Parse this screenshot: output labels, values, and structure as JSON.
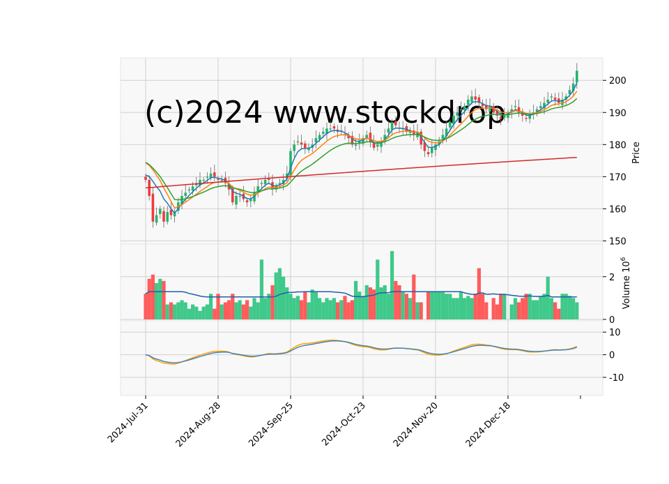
{
  "watermark": "(c)2024 www.stockdrop",
  "colors": {
    "panel_bg": "#f8f8f8",
    "grid": "#d0d0d0",
    "up": "#26b36e",
    "down": "#ef3c3c",
    "ma5": "#1f77b4",
    "ma10": "#ff7f0e",
    "ma20": "#2ca02c",
    "ma50": "#d62728",
    "volume_up": "#3fc98a",
    "volume_down": "#ff5c5c",
    "volume_ma": "#1f5fa8",
    "osc_fast": "#4682b4",
    "osc_slow": "#ffa500",
    "watermark": "#e4e4e4"
  },
  "chart_data": [
    {
      "type": "candlestick",
      "ylabel": "Price",
      "ylim": [
        149,
        207
      ],
      "yticks": [
        150,
        160,
        170,
        180,
        190,
        200
      ],
      "x_tick_labels": [
        "2024-Jul-31",
        "2024-Aug-28",
        "2024-Sep-25",
        "2024-Oct-23",
        "2024-Nov-20",
        "2024-Dec-18"
      ],
      "x_tick_index": [
        0,
        20,
        40,
        60,
        80,
        100
      ],
      "n": 120,
      "closes": [
        169,
        164,
        156,
        158,
        160,
        156,
        159,
        158,
        159,
        162,
        164,
        165,
        166,
        167,
        168,
        169,
        169,
        170,
        171,
        170,
        169,
        169,
        168,
        166,
        162,
        164,
        164,
        163,
        162,
        163,
        165,
        167,
        168,
        169,
        169,
        166,
        167,
        168,
        169,
        171,
        178,
        180,
        181,
        180,
        179,
        179,
        180,
        182,
        183,
        184,
        185,
        185,
        185,
        184,
        184,
        183,
        182,
        180,
        180,
        181,
        182,
        183,
        181,
        179,
        180,
        181,
        183,
        185,
        187,
        186,
        185,
        185,
        184,
        184,
        183,
        184,
        180,
        178,
        177,
        179,
        180,
        181,
        183,
        185,
        187,
        189,
        190,
        191,
        192,
        194,
        195,
        194,
        193,
        192,
        191,
        192,
        190,
        189,
        188,
        189,
        190,
        191,
        192,
        190,
        189,
        188,
        189,
        190,
        191,
        192,
        193,
        194,
        195,
        194,
        193,
        194,
        195,
        197,
        199,
        203
      ],
      "volume_unit": "Volume  10^6",
      "volume_ylim": [
        0,
        3.2
      ],
      "volume_yticks": [
        0,
        2
      ],
      "volumes": [
        1.2,
        1.9,
        2.1,
        1.7,
        1.9,
        1.8,
        0.7,
        0.8,
        0.7,
        0.8,
        0.9,
        0.8,
        0.5,
        0.7,
        0.6,
        0.4,
        0.6,
        0.7,
        1.2,
        0.5,
        1.2,
        0.7,
        0.8,
        0.9,
        1.2,
        0.8,
        0.9,
        0.7,
        0.9,
        0.6,
        1.0,
        0.8,
        2.8,
        1.0,
        1.2,
        1.6,
        2.2,
        2.4,
        2.0,
        1.5,
        1.2,
        1.0,
        1.1,
        0.9,
        1.3,
        0.8,
        1.4,
        1.3,
        1.0,
        0.8,
        1.0,
        0.9,
        1.0,
        0.8,
        0.9,
        1.1,
        0.8,
        0.9,
        1.8,
        1.3,
        1.1,
        1.6,
        1.5,
        1.4,
        2.8,
        1.5,
        1.6,
        1.2,
        3.2,
        1.8,
        1.6,
        1.3,
        1.2,
        1.0,
        2.1,
        0.8,
        0.8,
        0,
        1.3,
        1.3,
        1.3,
        1.3,
        1.3,
        1.2,
        1.2,
        1.0,
        1.0,
        1.3,
        1.0,
        1.1,
        1.0,
        1.2,
        2.4,
        1.2,
        0.8,
        0,
        1.0,
        0.7,
        1.2,
        1.2,
        0,
        0.7,
        1.0,
        0.8,
        1.0,
        1.2,
        1.2,
        0.9,
        0.9,
        1.1,
        1.2,
        2.0,
        1.0,
        0.8,
        0.5,
        1.2,
        1.2,
        1.1,
        1.0,
        0.8
      ],
      "osc_ylim": [
        -18,
        15
      ],
      "osc_yticks": [
        -10,
        0,
        10
      ]
    }
  ]
}
